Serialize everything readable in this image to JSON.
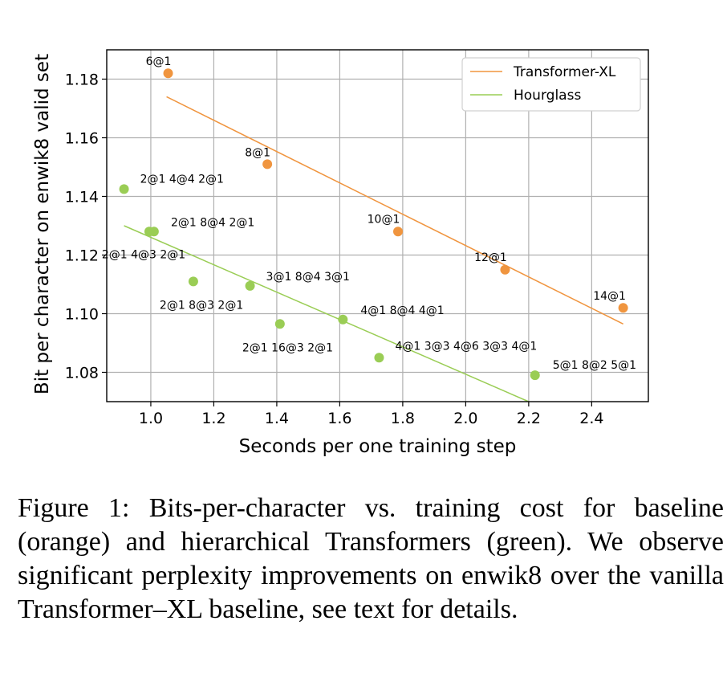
{
  "chart_data": {
    "type": "scatter",
    "title": "",
    "xlabel": "Seconds per one training step",
    "ylabel": "Bit per character on enwik8 valid set",
    "xlim": [
      0.86,
      2.58
    ],
    "ylim": [
      1.07,
      1.19
    ],
    "xticks": [
      1.0,
      1.2,
      1.4,
      1.6,
      1.8,
      2.0,
      2.2,
      2.4
    ],
    "yticks": [
      1.08,
      1.1,
      1.12,
      1.14,
      1.16,
      1.18
    ],
    "grid": true,
    "legend_position": "top-right",
    "series": [
      {
        "name": "Transformer-XL",
        "color": "#f0953f",
        "points": [
          {
            "x": 1.055,
            "y": 1.182,
            "label": "6@1"
          },
          {
            "x": 1.37,
            "y": 1.151,
            "label": "8@1"
          },
          {
            "x": 1.785,
            "y": 1.128,
            "label": "10@1"
          },
          {
            "x": 2.125,
            "y": 1.115,
            "label": "12@1"
          },
          {
            "x": 2.5,
            "y": 1.102,
            "label": "14@1"
          }
        ],
        "fit": {
          "x": [
            1.05,
            2.5
          ],
          "y": [
            1.174,
            1.0965
          ]
        }
      },
      {
        "name": "Hourglass",
        "color": "#9acd55",
        "points": [
          {
            "x": 0.915,
            "y": 1.1425,
            "label": "2@1 4@4 2@1"
          },
          {
            "x": 0.995,
            "y": 1.128,
            "label": "2@1 8@4 2@1"
          },
          {
            "x": 1.01,
            "y": 1.128,
            "label": "2@1 4@3 2@1"
          },
          {
            "x": 1.135,
            "y": 1.111,
            "label": "2@1 8@3 2@1"
          },
          {
            "x": 1.315,
            "y": 1.1095,
            "label": "3@1 8@4 3@1"
          },
          {
            "x": 1.41,
            "y": 1.0965,
            "label": "2@1 16@3 2@1"
          },
          {
            "x": 1.61,
            "y": 1.098,
            "label": "4@1 8@4 4@1"
          },
          {
            "x": 1.725,
            "y": 1.085,
            "label": "4@1 3@3 4@6 3@3 4@1"
          },
          {
            "x": 2.22,
            "y": 1.079,
            "label": "5@1 8@2 5@1"
          }
        ],
        "fit": {
          "x": [
            0.915,
            2.2
          ],
          "y": [
            1.13,
            1.07
          ]
        }
      }
    ]
  },
  "caption": "Figure 1: Bits-per-character vs. training cost for baseline (orange) and hierarchical Transformers (green). We observe significant perplexity improvements on enwik8 over the vanilla Transformer–XL baseline, see text for details."
}
